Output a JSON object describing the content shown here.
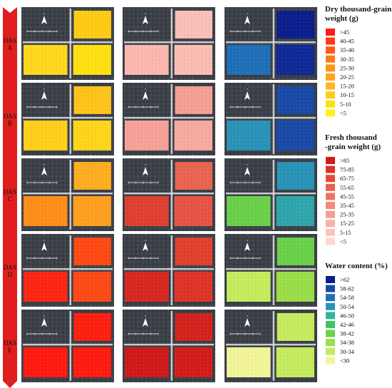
{
  "stages": [
    {
      "das": "DAS",
      "sub": "A"
    },
    {
      "das": "DAS",
      "sub": "B"
    },
    {
      "das": "DAS",
      "sub": "C"
    },
    {
      "das": "DAS",
      "sub": "D"
    },
    {
      "das": "DAS",
      "sub": "E"
    }
  ],
  "north_label": "N",
  "legends": [
    {
      "title_lines": [
        "Dry thousand-grain",
        "weight (g)"
      ],
      "items": [
        {
          "label": ">45",
          "color": "#ff1a1a"
        },
        {
          "label": "40-45",
          "color": "#ff3a10"
        },
        {
          "label": "35-40",
          "color": "#ff5a12"
        },
        {
          "label": "30-35",
          "color": "#ff7a14"
        },
        {
          "label": "25-30",
          "color": "#ff9218"
        },
        {
          "label": "20-25",
          "color": "#ffa51e"
        },
        {
          "label": "15-20",
          "color": "#ffb722"
        },
        {
          "label": "10-15",
          "color": "#ffcc1a"
        },
        {
          "label": "5-10",
          "color": "#ffdf12"
        },
        {
          "label": "<5",
          "color": "#fff21a"
        }
      ]
    },
    {
      "title_lines": [
        "Fresh thousand",
        "-grain weight (g)"
      ],
      "items": [
        {
          "label": ">85",
          "color": "#d21a1a"
        },
        {
          "label": "75-85",
          "color": "#dc3228"
        },
        {
          "label": "65-75",
          "color": "#e44a3a"
        },
        {
          "label": "55-65",
          "color": "#ea5f4e"
        },
        {
          "label": "45-55",
          "color": "#ef7464"
        },
        {
          "label": "35-45",
          "color": "#f38a7c"
        },
        {
          "label": "25-35",
          "color": "#f69e93"
        },
        {
          "label": "15-25",
          "color": "#f8b1a8"
        },
        {
          "label": "5-15",
          "color": "#fac3bd"
        },
        {
          "label": "<5",
          "color": "#fcd7d3"
        }
      ]
    },
    {
      "title_lines": [
        "Water content (%)"
      ],
      "items": [
        {
          "label": ">62",
          "color": "#0b1e8c"
        },
        {
          "label": "58-62",
          "color": "#1a4aa8"
        },
        {
          "label": "54-58",
          "color": "#1f6fb8"
        },
        {
          "label": "50-54",
          "color": "#2a93b8"
        },
        {
          "label": "46-50",
          "color": "#34b59c"
        },
        {
          "label": "42-46",
          "color": "#3fc560"
        },
        {
          "label": "38-42",
          "color": "#6bd14a"
        },
        {
          "label": "34-38",
          "color": "#9ade4a"
        },
        {
          "label": "30-34",
          "color": "#c6ec5e"
        },
        {
          "label": "<30",
          "color": "#f2f59a"
        }
      ]
    }
  ],
  "maps": {
    "dry": [
      [
        "#ffd41a",
        "#ffcc14",
        "#ffd81c",
        "#ffe012"
      ],
      [
        "#ffc61c",
        "#ffc41a",
        "#ffd01c",
        "#ffd61a"
      ],
      [
        "#ffb41e",
        "#ffae20",
        "#ff8e1a",
        "#ffa020"
      ],
      [
        "#ff3a12",
        "#ff4a14",
        "#ff2614",
        "#ff4a16"
      ],
      [
        "#ff1c10",
        "#ff2010",
        "#ff1a12",
        "#ff1c10"
      ]
    ],
    "fresh": [
      [
        "#fbc8c2",
        "#fac0b8",
        "#fab8b0",
        "#fabdb4"
      ],
      [
        "#f8a89e",
        "#f6a094",
        "#f7a298",
        "#f8aaa0"
      ],
      [
        "#ee7060",
        "#ea6452",
        "#e04030",
        "#e85444"
      ],
      [
        "#e03a2a",
        "#e2402e",
        "#d82820",
        "#de3428"
      ],
      [
        "#d21e1a",
        "#d4221c",
        "#d01a18",
        "#d21e1a"
      ]
    ],
    "water": [
      [
        "#1a4aa8",
        "#0b1e8c",
        "#1f6fb8",
        "#0f2a96"
      ],
      [
        "#1f6fb8",
        "#1a4aa8",
        "#2a93b8",
        "#1a4aa8"
      ],
      [
        "#34b59c",
        "#2a93b8",
        "#6bd14a",
        "#2fa6aa"
      ],
      [
        "#3fc560",
        "#6bd14a",
        "#c6ec5e",
        "#9ade4a"
      ],
      [
        "#9ade4a",
        "#c6ec5e",
        "#f2f59a",
        "#c6ec5e"
      ]
    ]
  }
}
